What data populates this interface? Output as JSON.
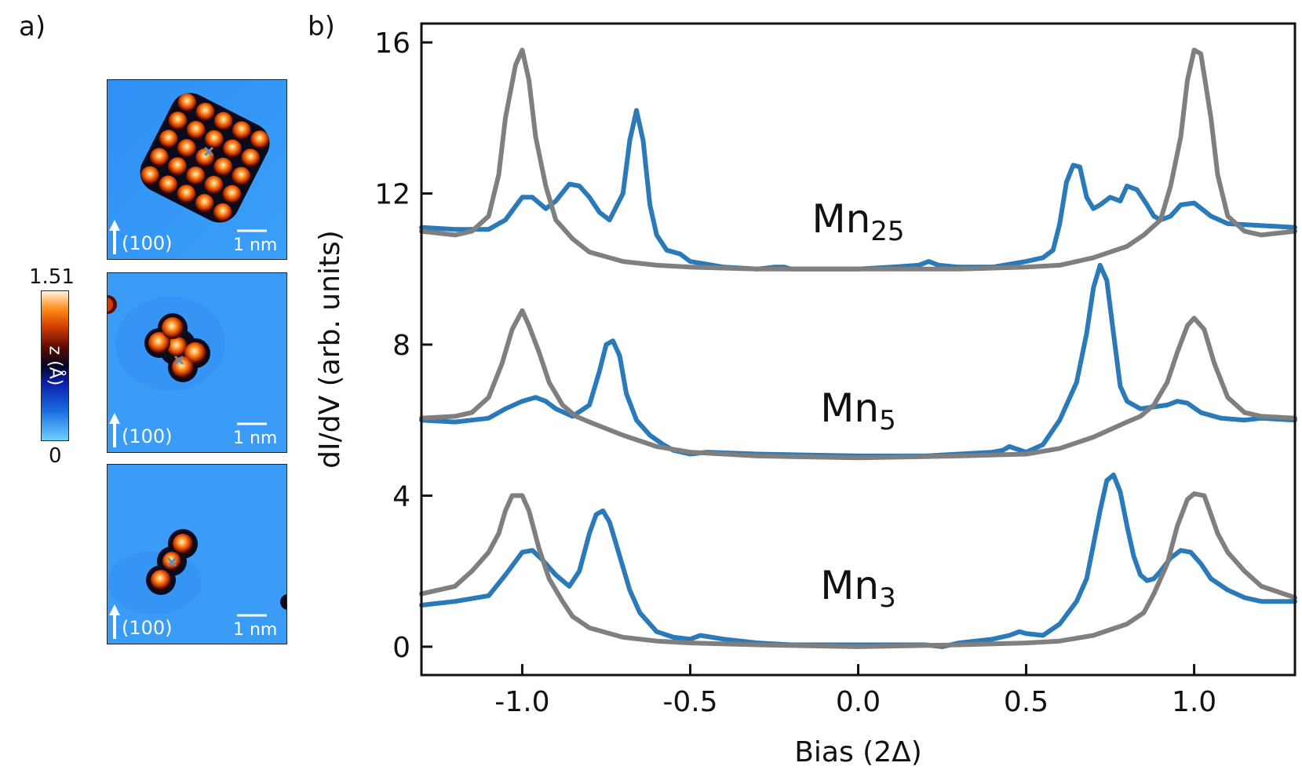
{
  "panels": {
    "a_label": "a)",
    "b_label": "b)"
  },
  "stm_images": [
    {
      "direction_label": "(100)",
      "scale_label": "1 nm",
      "cluster": "Mn25"
    },
    {
      "direction_label": "(100)",
      "scale_label": "1 nm",
      "cluster": "Mn5"
    },
    {
      "direction_label": "(100)",
      "scale_label": "1 nm",
      "cluster": "Mn3"
    }
  ],
  "colorbar": {
    "max": "1.51",
    "min": "0",
    "label": "z (Å)"
  },
  "colors": {
    "blue": "#2a7ab9",
    "gray": "#7f7f7f"
  },
  "chart_data": {
    "type": "line",
    "xlabel": "Bias (2Δ)",
    "ylabel": "dI/dV (arb. units)",
    "xlim": [
      -1.3,
      1.3
    ],
    "ylim": [
      -0.75,
      16.5
    ],
    "xticks": [
      -1.0,
      -0.5,
      0.0,
      0.5,
      1.0
    ],
    "xtick_labels": [
      "-1.0",
      "-0.5",
      "0.0",
      "0.5",
      "1.0"
    ],
    "yticks": [
      0,
      4,
      8,
      12,
      16
    ],
    "ytick_labels": [
      "0",
      "4",
      "8",
      "12",
      "16"
    ],
    "annotations": [
      {
        "base": "Mn",
        "sub": "25",
        "x": 0.0,
        "y": 11.3
      },
      {
        "base": "Mn",
        "sub": "5",
        "x": 0.0,
        "y": 6.3
      },
      {
        "base": "Mn",
        "sub": "3",
        "x": 0.0,
        "y": 1.6
      }
    ],
    "series": [
      {
        "group": "Mn25",
        "color": "#2a7ab9",
        "x": [
          -1.3,
          -1.2,
          -1.1,
          -1.05,
          -1.0,
          -0.97,
          -0.93,
          -0.9,
          -0.86,
          -0.83,
          -0.8,
          -0.77,
          -0.74,
          -0.7,
          -0.68,
          -0.66,
          -0.64,
          -0.62,
          -0.6,
          -0.57,
          -0.53,
          -0.5,
          -0.4,
          -0.3,
          -0.25,
          -0.22,
          -0.2,
          -0.1,
          0.0,
          0.1,
          0.18,
          0.21,
          0.24,
          0.3,
          0.4,
          0.5,
          0.55,
          0.58,
          0.6,
          0.62,
          0.64,
          0.66,
          0.68,
          0.7,
          0.72,
          0.75,
          0.78,
          0.8,
          0.83,
          0.86,
          0.88,
          0.9,
          0.93,
          0.96,
          1.0,
          1.05,
          1.1,
          1.2,
          1.3
        ],
        "y": [
          11.1,
          11.05,
          11.05,
          11.3,
          11.9,
          11.9,
          11.6,
          11.8,
          12.25,
          12.2,
          11.9,
          11.5,
          11.3,
          12.0,
          13.4,
          14.2,
          13.4,
          11.7,
          10.9,
          10.5,
          10.4,
          10.2,
          10.05,
          10.0,
          10.05,
          10.05,
          10.0,
          10.0,
          10.0,
          10.05,
          10.1,
          10.2,
          10.1,
          10.05,
          10.05,
          10.2,
          10.3,
          10.5,
          11.2,
          12.3,
          12.75,
          12.7,
          11.9,
          11.6,
          11.7,
          11.9,
          11.8,
          12.2,
          12.1,
          11.7,
          11.4,
          11.3,
          11.4,
          11.7,
          11.75,
          11.4,
          11.2,
          11.15,
          11.1
        ]
      },
      {
        "group": "Mn25",
        "color": "#7f7f7f",
        "x": [
          -1.3,
          -1.2,
          -1.15,
          -1.1,
          -1.07,
          -1.05,
          -1.02,
          -1.0,
          -0.98,
          -0.96,
          -0.93,
          -0.9,
          -0.85,
          -0.8,
          -0.7,
          -0.6,
          -0.5,
          -0.3,
          0.0,
          0.3,
          0.5,
          0.6,
          0.7,
          0.8,
          0.85,
          0.9,
          0.93,
          0.96,
          0.98,
          1.0,
          1.02,
          1.05,
          1.07,
          1.1,
          1.15,
          1.2,
          1.3
        ],
        "y": [
          11.0,
          10.9,
          11.0,
          11.4,
          12.5,
          14.0,
          15.4,
          15.8,
          15.0,
          13.5,
          12.2,
          11.3,
          10.8,
          10.45,
          10.2,
          10.1,
          10.05,
          10.0,
          10.0,
          10.0,
          10.05,
          10.1,
          10.3,
          10.6,
          10.9,
          11.3,
          12.2,
          13.5,
          15.0,
          15.8,
          15.7,
          14.0,
          12.5,
          11.4,
          11.0,
          10.9,
          11.0
        ]
      },
      {
        "group": "Mn5",
        "color": "#2a7ab9",
        "x": [
          -1.3,
          -1.2,
          -1.1,
          -1.05,
          -1.0,
          -0.96,
          -0.93,
          -0.9,
          -0.85,
          -0.8,
          -0.77,
          -0.75,
          -0.73,
          -0.71,
          -0.69,
          -0.66,
          -0.62,
          -0.58,
          -0.55,
          -0.5,
          -0.45,
          -0.3,
          0.0,
          0.2,
          0.3,
          0.4,
          0.43,
          0.45,
          0.5,
          0.55,
          0.6,
          0.65,
          0.68,
          0.7,
          0.72,
          0.74,
          0.76,
          0.78,
          0.8,
          0.84,
          0.88,
          0.92,
          0.95,
          0.98,
          1.02,
          1.08,
          1.15,
          1.2,
          1.3
        ],
        "y": [
          6.0,
          5.95,
          6.05,
          6.3,
          6.5,
          6.6,
          6.5,
          6.3,
          6.1,
          6.4,
          7.3,
          8.0,
          8.1,
          7.7,
          6.7,
          6.0,
          5.6,
          5.35,
          5.2,
          5.1,
          5.15,
          5.1,
          5.05,
          5.05,
          5.1,
          5.15,
          5.2,
          5.3,
          5.15,
          5.35,
          6.0,
          7.0,
          8.3,
          9.5,
          10.1,
          9.7,
          8.3,
          6.9,
          6.5,
          6.3,
          6.35,
          6.4,
          6.5,
          6.45,
          6.2,
          6.05,
          6.0,
          6.05,
          6.0
        ]
      },
      {
        "group": "Mn5",
        "color": "#7f7f7f",
        "x": [
          -1.3,
          -1.2,
          -1.15,
          -1.1,
          -1.06,
          -1.03,
          -1.0,
          -0.98,
          -0.95,
          -0.92,
          -0.88,
          -0.84,
          -0.8,
          -0.7,
          -0.6,
          -0.5,
          -0.3,
          0.0,
          0.3,
          0.5,
          0.6,
          0.7,
          0.8,
          0.84,
          0.88,
          0.92,
          0.95,
          0.98,
          1.0,
          1.03,
          1.06,
          1.1,
          1.15,
          1.2,
          1.3
        ],
        "y": [
          6.05,
          6.1,
          6.2,
          6.6,
          7.5,
          8.4,
          8.9,
          8.5,
          7.8,
          7.0,
          6.4,
          6.1,
          5.95,
          5.6,
          5.3,
          5.15,
          5.05,
          5.0,
          5.05,
          5.1,
          5.25,
          5.55,
          5.95,
          6.1,
          6.4,
          7.0,
          7.8,
          8.5,
          8.7,
          8.4,
          7.5,
          6.6,
          6.2,
          6.1,
          6.05
        ]
      },
      {
        "group": "Mn3",
        "color": "#2a7ab9",
        "x": [
          -1.3,
          -1.2,
          -1.1,
          -1.05,
          -1.0,
          -0.97,
          -0.94,
          -0.9,
          -0.86,
          -0.83,
          -0.8,
          -0.78,
          -0.76,
          -0.74,
          -0.71,
          -0.68,
          -0.65,
          -0.6,
          -0.55,
          -0.5,
          -0.47,
          -0.4,
          -0.3,
          -0.2,
          0.0,
          0.2,
          0.25,
          0.3,
          0.4,
          0.45,
          0.48,
          0.5,
          0.55,
          0.6,
          0.65,
          0.68,
          0.7,
          0.72,
          0.74,
          0.76,
          0.78,
          0.8,
          0.82,
          0.84,
          0.86,
          0.88,
          0.9,
          0.93,
          0.96,
          0.99,
          1.02,
          1.05,
          1.1,
          1.15,
          1.2,
          1.3
        ],
        "y": [
          1.1,
          1.2,
          1.35,
          1.9,
          2.5,
          2.55,
          2.3,
          1.9,
          1.6,
          2.0,
          3.0,
          3.5,
          3.6,
          3.3,
          2.4,
          1.5,
          0.9,
          0.4,
          0.25,
          0.2,
          0.3,
          0.2,
          0.1,
          0.05,
          0.05,
          0.05,
          0.0,
          0.1,
          0.2,
          0.3,
          0.4,
          0.35,
          0.3,
          0.6,
          1.2,
          1.8,
          2.7,
          3.6,
          4.4,
          4.55,
          4.1,
          3.2,
          2.4,
          1.9,
          1.75,
          1.8,
          2.0,
          2.35,
          2.55,
          2.5,
          2.2,
          1.8,
          1.5,
          1.3,
          1.2,
          1.2
        ]
      },
      {
        "group": "Mn3",
        "color": "#7f7f7f",
        "x": [
          -1.3,
          -1.2,
          -1.15,
          -1.1,
          -1.07,
          -1.05,
          -1.03,
          -1.0,
          -0.98,
          -0.95,
          -0.92,
          -0.88,
          -0.85,
          -0.8,
          -0.7,
          -0.6,
          -0.5,
          -0.3,
          0.0,
          0.3,
          0.5,
          0.6,
          0.7,
          0.8,
          0.85,
          0.88,
          0.92,
          0.95,
          0.98,
          1.0,
          1.03,
          1.05,
          1.07,
          1.1,
          1.15,
          1.2,
          1.3
        ],
        "y": [
          1.4,
          1.6,
          2.0,
          2.5,
          3.0,
          3.6,
          4.0,
          4.0,
          3.6,
          2.6,
          1.8,
          1.2,
          0.8,
          0.5,
          0.25,
          0.15,
          0.1,
          0.05,
          0.0,
          0.05,
          0.1,
          0.15,
          0.3,
          0.6,
          0.9,
          1.4,
          2.2,
          3.2,
          3.9,
          4.05,
          4.0,
          3.5,
          3.0,
          2.5,
          2.0,
          1.6,
          1.3
        ]
      }
    ]
  }
}
